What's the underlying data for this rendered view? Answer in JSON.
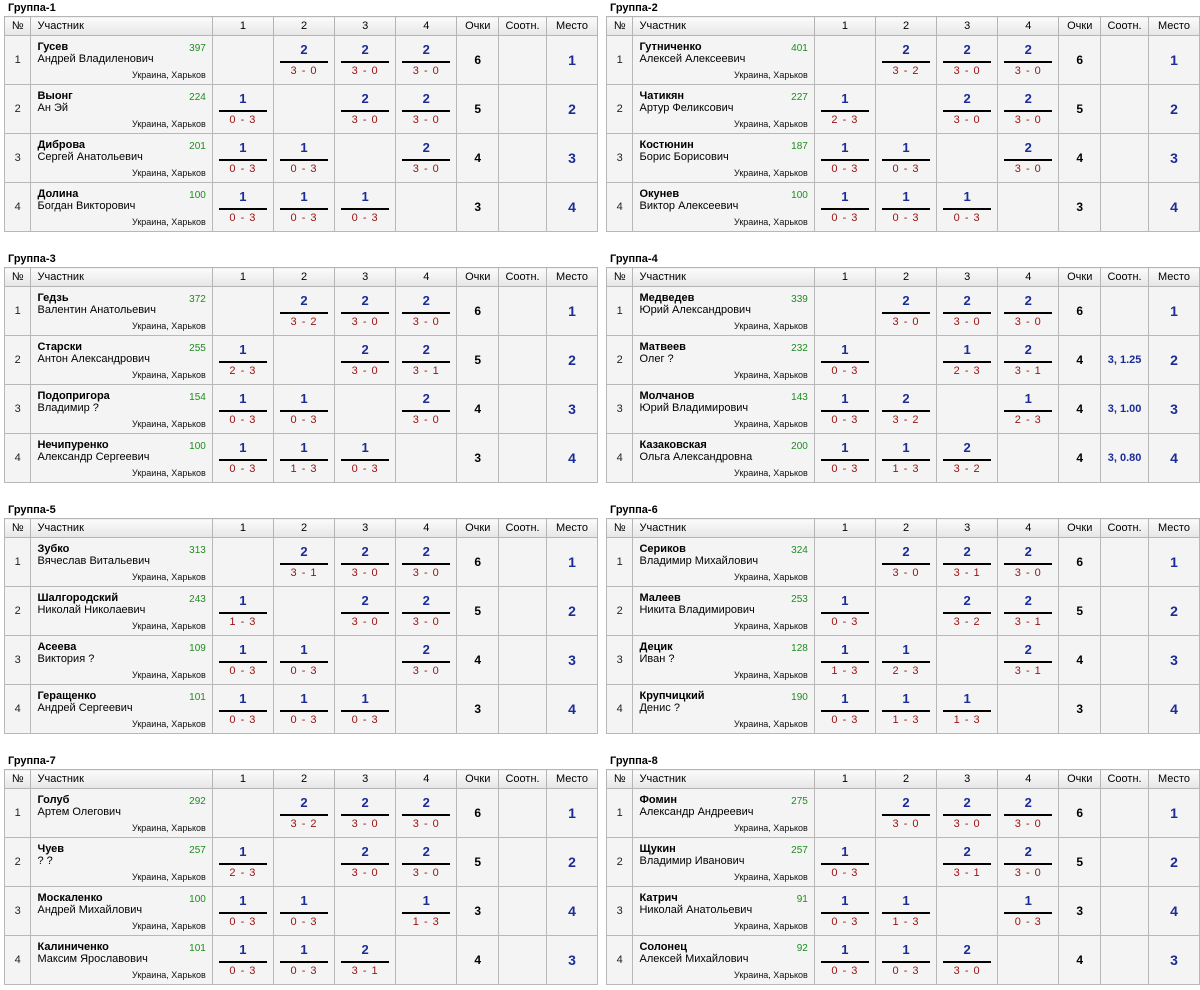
{
  "headers": {
    "no": "№",
    "participant": "Участник",
    "cols": [
      "1",
      "2",
      "3",
      "4"
    ],
    "points": "Очки",
    "relation": "Соотн.",
    "place": "Место"
  },
  "groups": [
    {
      "title": "Группа-1",
      "rows": [
        {
          "no": "1",
          "surname": "Гусев",
          "name": "Андрей Владиленович",
          "rating": "397",
          "location": "Украина, Харьков",
          "cells": [
            null,
            {
              "score": "2",
              "sets": "3 - 0"
            },
            {
              "score": "2",
              "sets": "3 - 0"
            },
            {
              "score": "2",
              "sets": "3 - 0"
            }
          ],
          "points": "6",
          "relation": "",
          "place": "1"
        },
        {
          "no": "2",
          "surname": "Выонг",
          "name": "Ан Эй",
          "rating": "224",
          "location": "Украина, Харьков",
          "cells": [
            {
              "score": "1",
              "sets": "0 - 3"
            },
            null,
            {
              "score": "2",
              "sets": "3 - 0"
            },
            {
              "score": "2",
              "sets": "3 - 0"
            }
          ],
          "points": "5",
          "relation": "",
          "place": "2"
        },
        {
          "no": "3",
          "surname": "Диброва",
          "name": "Сергей Анатольевич",
          "rating": "201",
          "location": "Украина, Харьков",
          "cells": [
            {
              "score": "1",
              "sets": "0 - 3"
            },
            {
              "score": "1",
              "sets": "0 - 3"
            },
            null,
            {
              "score": "2",
              "sets": "3 - 0"
            }
          ],
          "points": "4",
          "relation": "",
          "place": "3"
        },
        {
          "no": "4",
          "surname": "Долина",
          "name": "Богдан Викторович",
          "rating": "100",
          "location": "Украина, Харьков",
          "cells": [
            {
              "score": "1",
              "sets": "0 - 3"
            },
            {
              "score": "1",
              "sets": "0 - 3"
            },
            {
              "score": "1",
              "sets": "0 - 3"
            },
            null
          ],
          "points": "3",
          "relation": "",
          "place": "4"
        }
      ]
    },
    {
      "title": "Группа-2",
      "rows": [
        {
          "no": "1",
          "surname": "Гутниченко",
          "name": "Алексей Алексеевич",
          "rating": "401",
          "location": "Украина, Харьков",
          "cells": [
            null,
            {
              "score": "2",
              "sets": "3 - 2"
            },
            {
              "score": "2",
              "sets": "3 - 0"
            },
            {
              "score": "2",
              "sets": "3 - 0"
            }
          ],
          "points": "6",
          "relation": "",
          "place": "1"
        },
        {
          "no": "2",
          "surname": "Чатикян",
          "name": "Артур Феликсович",
          "rating": "227",
          "location": "Украина, Харьков",
          "cells": [
            {
              "score": "1",
              "sets": "2 - 3"
            },
            null,
            {
              "score": "2",
              "sets": "3 - 0"
            },
            {
              "score": "2",
              "sets": "3 - 0"
            }
          ],
          "points": "5",
          "relation": "",
          "place": "2"
        },
        {
          "no": "3",
          "surname": "Костюнин",
          "name": "Борис Борисович",
          "rating": "187",
          "location": "Украина, Харьков",
          "cells": [
            {
              "score": "1",
              "sets": "0 - 3"
            },
            {
              "score": "1",
              "sets": "0 - 3"
            },
            null,
            {
              "score": "2",
              "sets": "3 - 0"
            }
          ],
          "points": "4",
          "relation": "",
          "place": "3"
        },
        {
          "no": "4",
          "surname": "Окунев",
          "name": "Виктор Алексеевич",
          "rating": "100",
          "location": "Украина, Харьков",
          "cells": [
            {
              "score": "1",
              "sets": "0 - 3"
            },
            {
              "score": "1",
              "sets": "0 - 3"
            },
            {
              "score": "1",
              "sets": "0 - 3"
            },
            null
          ],
          "points": "3",
          "relation": "",
          "place": "4"
        }
      ]
    },
    {
      "title": "Группа-3",
      "rows": [
        {
          "no": "1",
          "surname": "Гедзь",
          "name": "Валентин Анатольевич",
          "rating": "372",
          "location": "Украина, Харьков",
          "cells": [
            null,
            {
              "score": "2",
              "sets": "3 - 2"
            },
            {
              "score": "2",
              "sets": "3 - 0"
            },
            {
              "score": "2",
              "sets": "3 - 0"
            }
          ],
          "points": "6",
          "relation": "",
          "place": "1"
        },
        {
          "no": "2",
          "surname": "Старски",
          "name": "Антон Александрович",
          "rating": "255",
          "location": "Украина, Харьков",
          "cells": [
            {
              "score": "1",
              "sets": "2 - 3"
            },
            null,
            {
              "score": "2",
              "sets": "3 - 0"
            },
            {
              "score": "2",
              "sets": "3 - 1"
            }
          ],
          "points": "5",
          "relation": "",
          "place": "2"
        },
        {
          "no": "3",
          "surname": "Подопригора",
          "name": "Владимир ?",
          "rating": "154",
          "location": "Украина, Харьков",
          "cells": [
            {
              "score": "1",
              "sets": "0 - 3"
            },
            {
              "score": "1",
              "sets": "0 - 3"
            },
            null,
            {
              "score": "2",
              "sets": "3 - 0"
            }
          ],
          "points": "4",
          "relation": "",
          "place": "3"
        },
        {
          "no": "4",
          "surname": "Нечипуренко",
          "name": "Александр Сергеевич",
          "rating": "100",
          "location": "Украина, Харьков",
          "cells": [
            {
              "score": "1",
              "sets": "0 - 3"
            },
            {
              "score": "1",
              "sets": "1 - 3"
            },
            {
              "score": "1",
              "sets": "0 - 3"
            },
            null
          ],
          "points": "3",
          "relation": "",
          "place": "4"
        }
      ]
    },
    {
      "title": "Группа-4",
      "rows": [
        {
          "no": "1",
          "surname": "Медведев",
          "name": "Юрий Александрович",
          "rating": "339",
          "location": "Украина, Харьков",
          "cells": [
            null,
            {
              "score": "2",
              "sets": "3 - 0"
            },
            {
              "score": "2",
              "sets": "3 - 0"
            },
            {
              "score": "2",
              "sets": "3 - 0"
            }
          ],
          "points": "6",
          "relation": "",
          "place": "1"
        },
        {
          "no": "2",
          "surname": "Матвеев",
          "name": "Олег ?",
          "rating": "232",
          "location": "Украина, Харьков",
          "cells": [
            {
              "score": "1",
              "sets": "0 - 3"
            },
            null,
            {
              "score": "1",
              "sets": "2 - 3"
            },
            {
              "score": "2",
              "sets": "3 - 1"
            }
          ],
          "points": "4",
          "relation": "3, 1.25",
          "place": "2"
        },
        {
          "no": "3",
          "surname": "Молчанов",
          "name": "Юрий Владимирович",
          "rating": "143",
          "location": "Украина, Харьков",
          "cells": [
            {
              "score": "1",
              "sets": "0 - 3"
            },
            {
              "score": "2",
              "sets": "3 - 2"
            },
            null,
            {
              "score": "1",
              "sets": "2 - 3"
            }
          ],
          "points": "4",
          "relation": "3, 1.00",
          "place": "3"
        },
        {
          "no": "4",
          "surname": "Казаковская",
          "name": "Ольга Александровна",
          "rating": "200",
          "location": "Украина, Харьков",
          "cells": [
            {
              "score": "1",
              "sets": "0 - 3"
            },
            {
              "score": "1",
              "sets": "1 - 3"
            },
            {
              "score": "2",
              "sets": "3 - 2"
            },
            null
          ],
          "points": "4",
          "relation": "3, 0.80",
          "place": "4"
        }
      ]
    },
    {
      "title": "Группа-5",
      "rows": [
        {
          "no": "1",
          "surname": "Зубко",
          "name": "Вячеслав Витальевич",
          "rating": "313",
          "location": "Украина, Харьков",
          "cells": [
            null,
            {
              "score": "2",
              "sets": "3 - 1"
            },
            {
              "score": "2",
              "sets": "3 - 0"
            },
            {
              "score": "2",
              "sets": "3 - 0"
            }
          ],
          "points": "6",
          "relation": "",
          "place": "1"
        },
        {
          "no": "2",
          "surname": "Шалгородский",
          "name": "Николай Николаевич",
          "rating": "243",
          "location": "Украина, Харьков",
          "cells": [
            {
              "score": "1",
              "sets": "1 - 3"
            },
            null,
            {
              "score": "2",
              "sets": "3 - 0"
            },
            {
              "score": "2",
              "sets": "3 - 0"
            }
          ],
          "points": "5",
          "relation": "",
          "place": "2"
        },
        {
          "no": "3",
          "surname": "Асеева",
          "name": "Виктория ?",
          "rating": "109",
          "location": "Украина, Харьков",
          "cells": [
            {
              "score": "1",
              "sets": "0 - 3"
            },
            {
              "score": "1",
              "sets": "0 - 3"
            },
            null,
            {
              "score": "2",
              "sets": "3 - 0"
            }
          ],
          "points": "4",
          "relation": "",
          "place": "3"
        },
        {
          "no": "4",
          "surname": "Геращенко",
          "name": "Андрей Сергеевич",
          "rating": "101",
          "location": "Украина, Харьков",
          "cells": [
            {
              "score": "1",
              "sets": "0 - 3"
            },
            {
              "score": "1",
              "sets": "0 - 3"
            },
            {
              "score": "1",
              "sets": "0 - 3"
            },
            null
          ],
          "points": "3",
          "relation": "",
          "place": "4"
        }
      ]
    },
    {
      "title": "Группа-6",
      "rows": [
        {
          "no": "1",
          "surname": "Сериков",
          "name": "Владимир Михайлович",
          "rating": "324",
          "location": "Украина, Харьков",
          "cells": [
            null,
            {
              "score": "2",
              "sets": "3 - 0"
            },
            {
              "score": "2",
              "sets": "3 - 1"
            },
            {
              "score": "2",
              "sets": "3 - 0"
            }
          ],
          "points": "6",
          "relation": "",
          "place": "1"
        },
        {
          "no": "2",
          "surname": "Малеев",
          "name": "Никита Владимирович",
          "rating": "253",
          "location": "Украина, Харьков",
          "cells": [
            {
              "score": "1",
              "sets": "0 - 3"
            },
            null,
            {
              "score": "2",
              "sets": "3 - 2"
            },
            {
              "score": "2",
              "sets": "3 - 1"
            }
          ],
          "points": "5",
          "relation": "",
          "place": "2"
        },
        {
          "no": "3",
          "surname": "Децик",
          "name": "Иван ?",
          "rating": "128",
          "location": "Украина, Харьков",
          "cells": [
            {
              "score": "1",
              "sets": "1 - 3"
            },
            {
              "score": "1",
              "sets": "2 - 3"
            },
            null,
            {
              "score": "2",
              "sets": "3 - 1"
            }
          ],
          "points": "4",
          "relation": "",
          "place": "3"
        },
        {
          "no": "4",
          "surname": "Крупчицкий",
          "name": "Денис ?",
          "rating": "190",
          "location": "Украина, Харьков",
          "cells": [
            {
              "score": "1",
              "sets": "0 - 3"
            },
            {
              "score": "1",
              "sets": "1 - 3"
            },
            {
              "score": "1",
              "sets": "1 - 3"
            },
            null
          ],
          "points": "3",
          "relation": "",
          "place": "4"
        }
      ]
    },
    {
      "title": "Группа-7",
      "rows": [
        {
          "no": "1",
          "surname": "Голуб",
          "name": "Артем Олегович",
          "rating": "292",
          "location": "Украина, Харьков",
          "cells": [
            null,
            {
              "score": "2",
              "sets": "3 - 2"
            },
            {
              "score": "2",
              "sets": "3 - 0"
            },
            {
              "score": "2",
              "sets": "3 - 0"
            }
          ],
          "points": "6",
          "relation": "",
          "place": "1"
        },
        {
          "no": "2",
          "surname": "Чуев",
          "name": "? ?",
          "rating": "257",
          "location": "Украина, Харьков",
          "cells": [
            {
              "score": "1",
              "sets": "2 - 3"
            },
            null,
            {
              "score": "2",
              "sets": "3 - 0"
            },
            {
              "score": "2",
              "sets": "3 - 0"
            }
          ],
          "points": "5",
          "relation": "",
          "place": "2"
        },
        {
          "no": "3",
          "surname": "Москаленко",
          "name": "Андрей Михайлович",
          "rating": "100",
          "location": "Украина, Харьков",
          "cells": [
            {
              "score": "1",
              "sets": "0 - 3"
            },
            {
              "score": "1",
              "sets": "0 - 3"
            },
            null,
            {
              "score": "1",
              "sets": "1 - 3"
            }
          ],
          "points": "3",
          "relation": "",
          "place": "4"
        },
        {
          "no": "4",
          "surname": "Калиниченко",
          "name": "Максим Ярославович",
          "rating": "101",
          "location": "Украина, Харьков",
          "cells": [
            {
              "score": "1",
              "sets": "0 - 3"
            },
            {
              "score": "1",
              "sets": "0 - 3"
            },
            {
              "score": "2",
              "sets": "3 - 1"
            },
            null
          ],
          "points": "4",
          "relation": "",
          "place": "3"
        }
      ]
    },
    {
      "title": "Группа-8",
      "rows": [
        {
          "no": "1",
          "surname": "Фомин",
          "name": "Александр Андреевич",
          "rating": "275",
          "location": "Украина, Харьков",
          "cells": [
            null,
            {
              "score": "2",
              "sets": "3 - 0"
            },
            {
              "score": "2",
              "sets": "3 - 0"
            },
            {
              "score": "2",
              "sets": "3 - 0"
            }
          ],
          "points": "6",
          "relation": "",
          "place": "1"
        },
        {
          "no": "2",
          "surname": "Щукин",
          "name": "Владимир Иванович",
          "rating": "257",
          "location": "Украина, Харьков",
          "cells": [
            {
              "score": "1",
              "sets": "0 - 3"
            },
            null,
            {
              "score": "2",
              "sets": "3 - 1"
            },
            {
              "score": "2",
              "sets": "3 - 0"
            }
          ],
          "points": "5",
          "relation": "",
          "place": "2"
        },
        {
          "no": "3",
          "surname": "Катрич",
          "name": "Николай Анатольевич",
          "rating": "91",
          "location": "Украина, Харьков",
          "cells": [
            {
              "score": "1",
              "sets": "0 - 3"
            },
            {
              "score": "1",
              "sets": "1 - 3"
            },
            null,
            {
              "score": "1",
              "sets": "0 - 3"
            }
          ],
          "points": "3",
          "relation": "",
          "place": "4"
        },
        {
          "no": "4",
          "surname": "Солонец",
          "name": "Алексей Михайлович",
          "rating": "92",
          "location": "Украина, Харьков",
          "cells": [
            {
              "score": "1",
              "sets": "0 - 3"
            },
            {
              "score": "1",
              "sets": "0 - 3"
            },
            {
              "score": "2",
              "sets": "3 - 0"
            },
            null
          ],
          "points": "4",
          "relation": "",
          "place": "3"
        }
      ]
    }
  ]
}
